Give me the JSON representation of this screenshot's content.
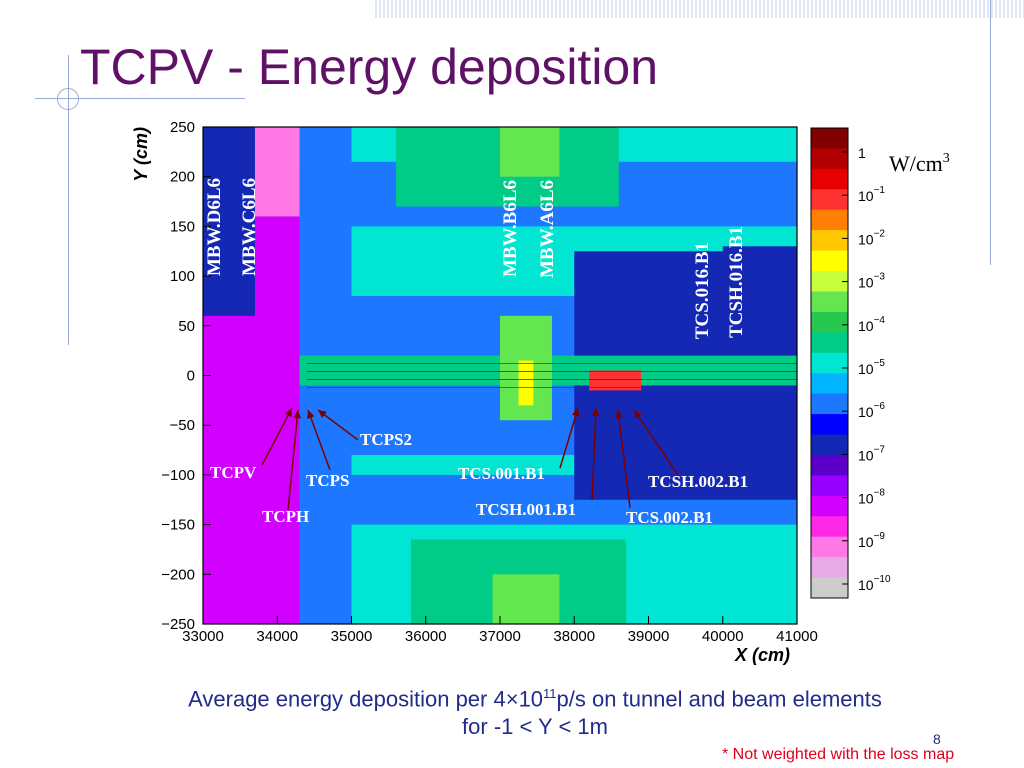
{
  "title": "TCPV - Energy deposition",
  "caption": {
    "line1_prefix": "Average energy deposition per 4×10",
    "line1_exp": "11",
    "line1_suffix": "p/s on tunnel and beam elements",
    "line2": "for  -1 < Y < 1m"
  },
  "slide_number": "8",
  "note": "* Not weighted with the loss map",
  "chart_data": {
    "type": "heatmap",
    "xlabel": "X (cm)",
    "ylabel": "Y (cm)",
    "xlim": [
      33000,
      41000
    ],
    "ylim": [
      -250,
      250
    ],
    "x_ticks": [
      "33000",
      "34000",
      "35000",
      "36000",
      "37000",
      "38000",
      "39000",
      "40000",
      "41000"
    ],
    "y_ticks": [
      "250",
      "200",
      "150",
      "100",
      "50",
      "0",
      "−50",
      "−100",
      "−150",
      "−200",
      "−250"
    ],
    "colorbar": {
      "unit": "W/cm",
      "unit_exp": "3",
      "colors": [
        "#800000",
        "#b20000",
        "#e60000",
        "#ff3232",
        "#ff8000",
        "#ffc800",
        "#ffff00",
        "#c8ff3c",
        "#64e650",
        "#28c850",
        "#00cc88",
        "#00e6d2",
        "#00b4ff",
        "#1e78ff",
        "#0000ff",
        "#1428b4",
        "#5a00c8",
        "#9600ff",
        "#d200ff",
        "#ff28e6",
        "#ff78e6",
        "#e6aae6",
        "#cccccc"
      ],
      "tick_labels": [
        {
          "m": "1",
          "e": ""
        },
        {
          "m": "10",
          "e": "−1"
        },
        {
          "m": "10",
          "e": "−2"
        },
        {
          "m": "10",
          "e": "−3"
        },
        {
          "m": "10",
          "e": "−4"
        },
        {
          "m": "10",
          "e": "−5"
        },
        {
          "m": "10",
          "e": "−6"
        },
        {
          "m": "10",
          "e": "−7"
        },
        {
          "m": "10",
          "e": "−8"
        },
        {
          "m": "10",
          "e": "−9"
        },
        {
          "m": "10",
          "e": "−10"
        }
      ]
    },
    "element_labels": {
      "vertical": [
        "MBW.D6L6",
        "MBW.C6L6",
        "MBW.B6L6",
        "MBW.A6L6",
        "TCS.016.B1",
        "TCSH.016.B1"
      ],
      "collimators": [
        "TCPS2",
        "TCPV",
        "TCPS",
        "TCPH",
        "TCS.001.B1",
        "TCSH.001.B1",
        "TCSH.002.B1",
        "TCS.002.B1"
      ]
    },
    "regions": [
      {
        "x0": 33000,
        "x1": 41000,
        "y0": -250,
        "y1": 250,
        "level": "1e-5"
      },
      {
        "x0": 34900,
        "x1": 41000,
        "y0": -80,
        "y1": 80,
        "level": "1e-6"
      },
      {
        "x0": 34300,
        "x1": 41000,
        "y0": 150,
        "y1": 215,
        "level": "1e-6"
      },
      {
        "x0": 34300,
        "x1": 41000,
        "y0": -150,
        "y1": -100,
        "level": "1e-6"
      },
      {
        "x0": 38000,
        "x1": 41000,
        "y0": -125,
        "y1": 125,
        "level": "1e-7"
      },
      {
        "x0": 40000,
        "x1": 41000,
        "y0": 30,
        "y1": 130,
        "level": "1e-7"
      },
      {
        "x0": 40300,
        "x1": 41000,
        "y0": -250,
        "y1": -190,
        "level": "1e-5"
      },
      {
        "x0": 35600,
        "x1": 38600,
        "y0": 170,
        "y1": 250,
        "level": "1e-4"
      },
      {
        "x0": 35800,
        "x1": 38700,
        "y0": -250,
        "y1": -165,
        "level": "1e-4"
      },
      {
        "x0": 37000,
        "x1": 37800,
        "y0": 200,
        "y1": 250,
        "level": "1e-3"
      },
      {
        "x0": 36900,
        "x1": 37800,
        "y0": -250,
        "y1": -200,
        "level": "1e-3"
      },
      {
        "x0": 33000,
        "x1": 34300,
        "y0": -250,
        "y1": 250,
        "level": "1e-8"
      },
      {
        "x0": 33500,
        "x1": 34300,
        "y0": 160,
        "y1": 250,
        "level": "1e-9"
      },
      {
        "x0": 33000,
        "x1": 33700,
        "y0": 60,
        "y1": 250,
        "level": "1e-7"
      },
      {
        "x0": 34300,
        "x1": 35000,
        "y0": -250,
        "y1": 250,
        "level": "1e-6"
      },
      {
        "x0": 34300,
        "x1": 41000,
        "y0": -10,
        "y1": 20,
        "level": "1e-4"
      },
      {
        "x0": 37000,
        "x1": 37700,
        "y0": -45,
        "y1": 60,
        "level": "1e-3"
      },
      {
        "x0": 37250,
        "x1": 37450,
        "y0": -30,
        "y1": 15,
        "level": "1e-2"
      },
      {
        "x0": 38200,
        "x1": 38900,
        "y0": -15,
        "y1": 5,
        "level": "1e-1"
      }
    ]
  }
}
